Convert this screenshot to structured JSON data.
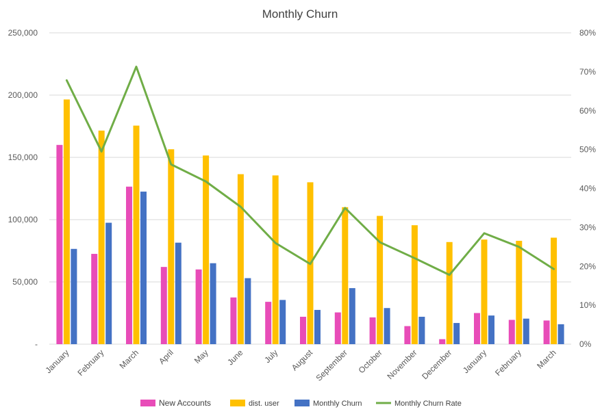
{
  "chart_data": {
    "type": "bar",
    "title": "Monthly Churn",
    "categories": [
      "January",
      "February",
      "March",
      "April",
      "May",
      "June",
      "July",
      "August",
      "September",
      "October",
      "November",
      "December",
      "January",
      "February",
      "March"
    ],
    "series": [
      {
        "name": "New Accounts",
        "type": "bar",
        "axis": "left",
        "color": "#E84CB8",
        "values": [
          160000,
          72500,
          126500,
          62000,
          60000,
          37500,
          34000,
          22000,
          25500,
          21500,
          14500,
          4000,
          25000,
          19500,
          19000
        ]
      },
      {
        "name": "dist. user",
        "type": "bar",
        "axis": "left",
        "color": "#FFC000",
        "values": [
          196500,
          171500,
          175500,
          156500,
          151500,
          136500,
          135500,
          130000,
          110000,
          103000,
          95500,
          82000,
          84000,
          83000,
          85500
        ]
      },
      {
        "name": "Monthly Churn",
        "type": "bar",
        "axis": "left",
        "color": "#4472C4",
        "values": [
          76500,
          97500,
          122500,
          81500,
          65000,
          53000,
          35500,
          27500,
          45000,
          29000,
          22000,
          17000,
          23000,
          20500,
          16000
        ]
      },
      {
        "name": "Monthly Churn Rate",
        "type": "line",
        "axis": "right",
        "color": "#70AD47",
        "values": [
          0.678,
          0.495,
          0.713,
          0.462,
          0.418,
          0.353,
          0.26,
          0.206,
          0.35,
          0.262,
          0.221,
          0.178,
          0.285,
          0.25,
          0.193
        ]
      }
    ],
    "y_left": {
      "min": 0,
      "max": 250000,
      "ticks": [
        "-",
        "50,000",
        "100,000",
        "150,000",
        "200,000",
        "250,000"
      ]
    },
    "y_right": {
      "min": 0,
      "max": 0.8,
      "ticks": [
        "0%",
        "10%",
        "20%",
        "30%",
        "40%",
        "50%",
        "60%",
        "70%",
        "80%"
      ]
    },
    "grid": true,
    "legend_position": "bottom"
  }
}
